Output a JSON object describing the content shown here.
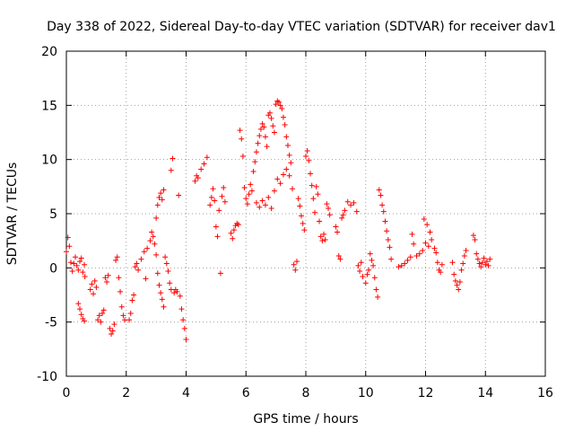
{
  "chart_data": {
    "type": "scatter",
    "title": "Day 338 of 2022, Sidereal Day-to-day VTEC variation (SDTVAR) for receiver dav1",
    "xlabel": "GPS time / hours",
    "ylabel": "SDTVAR / TECUs",
    "xlim": [
      0,
      16
    ],
    "ylim": [
      -10,
      20
    ],
    "xticks": [
      0,
      2,
      4,
      6,
      8,
      10,
      12,
      14,
      16
    ],
    "yticks": [
      -10,
      -5,
      0,
      5,
      10,
      15,
      20
    ],
    "xtick_labels": [
      "0",
      "2",
      "4",
      "6",
      "8",
      "10",
      "12",
      "14",
      "16"
    ],
    "ytick_labels": [
      "-10",
      "-5",
      "0",
      "5",
      "10",
      "15",
      "20"
    ],
    "grid": true,
    "marker": "+",
    "series": [
      {
        "name": "SDTVAR",
        "color": "#ff0000",
        "points": [
          [
            0.0,
            1.5
          ],
          [
            0.05,
            2.8
          ],
          [
            0.1,
            2.0
          ],
          [
            0.15,
            0.5
          ],
          [
            0.2,
            -0.3
          ],
          [
            0.25,
            0.4
          ],
          [
            0.3,
            1.0
          ],
          [
            0.35,
            0.2
          ],
          [
            0.4,
            -0.2
          ],
          [
            0.45,
            0.6
          ],
          [
            0.5,
            0.9
          ],
          [
            0.55,
            -0.4
          ],
          [
            0.6,
            0.3
          ],
          [
            0.62,
            -0.8
          ],
          [
            0.4,
            -3.3
          ],
          [
            0.45,
            -3.8
          ],
          [
            0.5,
            -4.3
          ],
          [
            0.55,
            -4.7
          ],
          [
            0.6,
            -4.9
          ],
          [
            0.8,
            -2.0
          ],
          [
            0.85,
            -1.5
          ],
          [
            0.9,
            -2.4
          ],
          [
            0.95,
            -1.2
          ],
          [
            1.0,
            -1.8
          ],
          [
            1.05,
            -4.8
          ],
          [
            1.1,
            -4.4
          ],
          [
            1.15,
            -5.0
          ],
          [
            1.2,
            -4.2
          ],
          [
            1.25,
            -3.9
          ],
          [
            1.3,
            -0.9
          ],
          [
            1.35,
            -1.3
          ],
          [
            1.4,
            -0.7
          ],
          [
            1.45,
            -5.6
          ],
          [
            1.5,
            -6.1
          ],
          [
            1.55,
            -5.8
          ],
          [
            1.6,
            -5.2
          ],
          [
            1.65,
            0.7
          ],
          [
            1.7,
            1.0
          ],
          [
            1.75,
            -0.9
          ],
          [
            1.8,
            -2.2
          ],
          [
            1.85,
            -3.6
          ],
          [
            1.9,
            -4.4
          ],
          [
            1.95,
            -4.8
          ],
          [
            2.1,
            -4.8
          ],
          [
            2.15,
            -4.2
          ],
          [
            2.2,
            -3.0
          ],
          [
            2.25,
            -2.5
          ],
          [
            2.3,
            0.1
          ],
          [
            2.35,
            0.4
          ],
          [
            2.4,
            -0.2
          ],
          [
            2.5,
            0.8
          ],
          [
            2.6,
            1.5
          ],
          [
            2.65,
            -1.0
          ],
          [
            2.7,
            1.8
          ],
          [
            2.8,
            2.5
          ],
          [
            2.85,
            3.3
          ],
          [
            2.9,
            2.9
          ],
          [
            2.95,
            2.2
          ],
          [
            3.0,
            1.2
          ],
          [
            3.05,
            -0.5
          ],
          [
            3.1,
            -1.6
          ],
          [
            3.15,
            -2.3
          ],
          [
            3.2,
            -2.9
          ],
          [
            3.25,
            -3.6
          ],
          [
            3.0,
            4.6
          ],
          [
            3.05,
            5.8
          ],
          [
            3.1,
            6.5
          ],
          [
            3.15,
            6.9
          ],
          [
            3.2,
            6.3
          ],
          [
            3.25,
            7.2
          ],
          [
            3.3,
            1.0
          ],
          [
            3.35,
            0.4
          ],
          [
            3.4,
            -0.3
          ],
          [
            3.45,
            -1.4
          ],
          [
            3.5,
            -2.0
          ],
          [
            3.5,
            9.0
          ],
          [
            3.55,
            10.1
          ],
          [
            3.6,
            -2.3
          ],
          [
            3.65,
            -2.0
          ],
          [
            3.7,
            -2.2
          ],
          [
            3.75,
            6.7
          ],
          [
            3.8,
            -2.6
          ],
          [
            3.85,
            -3.8
          ],
          [
            3.9,
            -4.8
          ],
          [
            3.95,
            -5.6
          ],
          [
            4.0,
            -6.6
          ],
          [
            4.3,
            8.0
          ],
          [
            4.35,
            8.5
          ],
          [
            4.4,
            8.3
          ],
          [
            4.5,
            9.1
          ],
          [
            4.6,
            9.6
          ],
          [
            4.7,
            10.2
          ],
          [
            4.8,
            5.8
          ],
          [
            4.85,
            6.5
          ],
          [
            4.9,
            7.3
          ],
          [
            4.95,
            6.2
          ],
          [
            5.0,
            3.8
          ],
          [
            5.05,
            2.9
          ],
          [
            5.1,
            5.3
          ],
          [
            5.15,
            -0.5
          ],
          [
            5.2,
            6.6
          ],
          [
            5.25,
            7.4
          ],
          [
            5.3,
            6.1
          ],
          [
            5.5,
            3.2
          ],
          [
            5.55,
            2.7
          ],
          [
            5.6,
            3.5
          ],
          [
            5.65,
            3.9
          ],
          [
            5.7,
            4.1
          ],
          [
            5.75,
            4.0
          ],
          [
            5.8,
            12.7
          ],
          [
            5.85,
            11.9
          ],
          [
            5.9,
            10.3
          ],
          [
            5.95,
            7.4
          ],
          [
            6.0,
            6.4
          ],
          [
            6.05,
            5.9
          ],
          [
            6.1,
            6.8
          ],
          [
            6.15,
            7.7
          ],
          [
            6.2,
            7.1
          ],
          [
            6.25,
            8.9
          ],
          [
            6.3,
            9.8
          ],
          [
            6.35,
            10.7
          ],
          [
            6.4,
            11.5
          ],
          [
            6.45,
            12.2
          ],
          [
            6.5,
            12.8
          ],
          [
            6.55,
            13.3
          ],
          [
            6.6,
            13.0
          ],
          [
            6.65,
            12.1
          ],
          [
            6.7,
            11.2
          ],
          [
            6.75,
            14.1
          ],
          [
            6.8,
            14.3
          ],
          [
            6.85,
            13.8
          ],
          [
            6.9,
            13.1
          ],
          [
            6.95,
            12.5
          ],
          [
            7.0,
            15.1
          ],
          [
            7.05,
            15.4
          ],
          [
            7.1,
            15.3
          ],
          [
            7.15,
            15.0
          ],
          [
            7.2,
            14.7
          ],
          [
            7.25,
            13.9
          ],
          [
            7.3,
            13.2
          ],
          [
            7.35,
            12.1
          ],
          [
            7.4,
            11.3
          ],
          [
            7.45,
            10.4
          ],
          [
            7.5,
            9.7
          ],
          [
            6.35,
            6.0
          ],
          [
            6.45,
            5.6
          ],
          [
            6.55,
            6.2
          ],
          [
            6.65,
            5.8
          ],
          [
            6.75,
            6.5
          ],
          [
            6.85,
            5.5
          ],
          [
            6.95,
            7.1
          ],
          [
            7.05,
            8.2
          ],
          [
            7.15,
            7.8
          ],
          [
            7.25,
            8.6
          ],
          [
            7.35,
            9.1
          ],
          [
            7.45,
            8.5
          ],
          [
            7.55,
            7.3
          ],
          [
            7.6,
            0.3
          ],
          [
            7.65,
            -0.2
          ],
          [
            7.7,
            0.6
          ],
          [
            7.75,
            6.4
          ],
          [
            7.8,
            5.7
          ],
          [
            7.85,
            4.8
          ],
          [
            7.9,
            4.1
          ],
          [
            7.95,
            3.5
          ],
          [
            8.0,
            10.3
          ],
          [
            8.05,
            10.8
          ],
          [
            8.1,
            9.9
          ],
          [
            8.15,
            8.7
          ],
          [
            8.2,
            7.6
          ],
          [
            8.25,
            6.4
          ],
          [
            8.3,
            5.1
          ],
          [
            8.35,
            7.5
          ],
          [
            8.4,
            6.8
          ],
          [
            8.45,
            4.3
          ],
          [
            8.5,
            2.9
          ],
          [
            8.55,
            2.5
          ],
          [
            8.6,
            3.1
          ],
          [
            8.65,
            2.6
          ],
          [
            8.7,
            5.9
          ],
          [
            8.75,
            5.5
          ],
          [
            8.8,
            4.9
          ],
          [
            9.0,
            3.8
          ],
          [
            9.05,
            3.3
          ],
          [
            9.1,
            1.1
          ],
          [
            9.15,
            0.8
          ],
          [
            9.2,
            4.6
          ],
          [
            9.25,
            4.9
          ],
          [
            9.3,
            5.3
          ],
          [
            9.4,
            6.1
          ],
          [
            9.5,
            5.8
          ],
          [
            9.6,
            6.0
          ],
          [
            9.7,
            5.2
          ],
          [
            9.75,
            0.2
          ],
          [
            9.8,
            -0.3
          ],
          [
            9.85,
            0.5
          ],
          [
            9.9,
            -0.8
          ],
          [
            10.0,
            -1.4
          ],
          [
            10.05,
            -0.6
          ],
          [
            10.1,
            -0.2
          ],
          [
            10.15,
            1.3
          ],
          [
            10.2,
            0.7
          ],
          [
            10.25,
            0.2
          ],
          [
            10.3,
            -0.9
          ],
          [
            10.35,
            -2.0
          ],
          [
            10.4,
            -2.7
          ],
          [
            10.45,
            7.2
          ],
          [
            10.5,
            6.7
          ],
          [
            10.55,
            5.8
          ],
          [
            10.6,
            5.2
          ],
          [
            10.65,
            4.3
          ],
          [
            10.7,
            3.4
          ],
          [
            10.75,
            2.6
          ],
          [
            10.8,
            1.9
          ],
          [
            10.85,
            0.8
          ],
          [
            11.1,
            0.1
          ],
          [
            11.2,
            0.2
          ],
          [
            11.3,
            0.4
          ],
          [
            11.4,
            0.7
          ],
          [
            11.5,
            1.0
          ],
          [
            11.55,
            3.1
          ],
          [
            11.6,
            2.2
          ],
          [
            11.7,
            1.1
          ],
          [
            11.8,
            1.3
          ],
          [
            11.9,
            1.6
          ],
          [
            11.95,
            4.5
          ],
          [
            12.0,
            2.3
          ],
          [
            12.05,
            4.0
          ],
          [
            12.1,
            2.0
          ],
          [
            12.15,
            3.3
          ],
          [
            12.2,
            2.6
          ],
          [
            12.3,
            1.8
          ],
          [
            12.35,
            1.4
          ],
          [
            12.4,
            0.5
          ],
          [
            12.45,
            -0.2
          ],
          [
            12.5,
            -0.4
          ],
          [
            12.55,
            0.3
          ],
          [
            12.9,
            0.5
          ],
          [
            12.95,
            -0.6
          ],
          [
            13.0,
            -1.2
          ],
          [
            13.05,
            -1.6
          ],
          [
            13.1,
            -2.0
          ],
          [
            13.15,
            -1.3
          ],
          [
            13.2,
            -0.2
          ],
          [
            13.25,
            0.4
          ],
          [
            13.3,
            1.1
          ],
          [
            13.35,
            1.6
          ],
          [
            13.6,
            3.0
          ],
          [
            13.65,
            2.6
          ],
          [
            13.7,
            1.3
          ],
          [
            13.75,
            0.8
          ],
          [
            13.8,
            0.4
          ],
          [
            13.85,
            0.1
          ],
          [
            13.9,
            0.5
          ],
          [
            13.95,
            0.9
          ],
          [
            14.0,
            0.3
          ],
          [
            14.05,
            0.6
          ],
          [
            14.1,
            0.2
          ],
          [
            14.15,
            0.8
          ]
        ]
      }
    ]
  }
}
